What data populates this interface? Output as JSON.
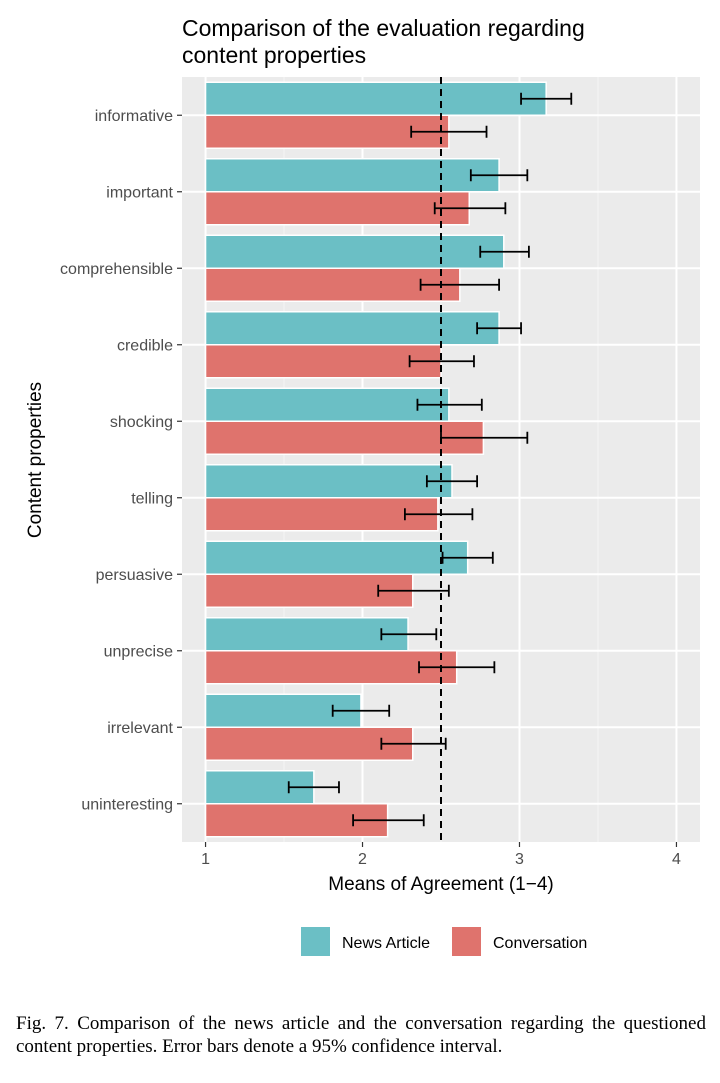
{
  "caption": "Fig. 7.  Comparison of the news article and the conversation regarding the questioned content properties. Error bars denote a 95% confidence interval.",
  "chart_data": {
    "type": "bar",
    "orientation": "horizontal",
    "title_lines": [
      "Comparison of the evaluation regarding",
      "content properties"
    ],
    "xlabel": "Means of Agreement (1−4)",
    "ylabel": "Content properties",
    "xlim": [
      0.85,
      4.15
    ],
    "xticks": [
      "1",
      "2",
      "3",
      "4"
    ],
    "reference_line": {
      "x": 2.5,
      "style": "dashed"
    },
    "grid": true,
    "legend_position": "bottom",
    "categories": [
      "informative",
      "important",
      "comprehensible",
      "credible",
      "shocking",
      "telling",
      "persuasive",
      "unprecise",
      "irrelevant",
      "uninteresting"
    ],
    "series": [
      {
        "name": "News Article",
        "color": "#6bbfc5",
        "values": [
          3.17,
          2.87,
          2.9,
          2.87,
          2.55,
          2.57,
          2.67,
          2.29,
          1.99,
          1.69
        ],
        "ci_low": [
          3.01,
          2.69,
          2.75,
          2.73,
          2.35,
          2.41,
          2.51,
          2.12,
          1.81,
          1.53
        ],
        "ci_high": [
          3.33,
          3.05,
          3.06,
          3.01,
          2.76,
          2.73,
          2.83,
          2.47,
          2.17,
          1.85
        ]
      },
      {
        "name": "Conversation",
        "color": "#df736d",
        "values": [
          2.55,
          2.68,
          2.62,
          2.5,
          2.77,
          2.48,
          2.32,
          2.6,
          2.32,
          2.16
        ],
        "ci_low": [
          2.31,
          2.46,
          2.37,
          2.3,
          2.5,
          2.27,
          2.1,
          2.36,
          2.12,
          1.94
        ],
        "ci_high": [
          2.79,
          2.91,
          2.87,
          2.71,
          3.05,
          2.7,
          2.55,
          2.84,
          2.53,
          2.39
        ]
      }
    ]
  }
}
